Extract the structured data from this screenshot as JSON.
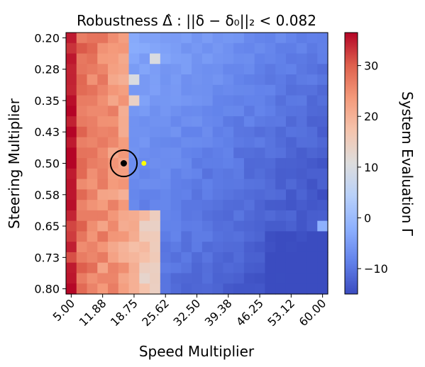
{
  "chart_data": {
    "type": "heatmap",
    "title": "Robustness Δ̂ : ||δ − δ₀||₂ < 0.082",
    "xlabel": "Speed Multiplier",
    "ylabel": "Steering Multiplier",
    "colorbar_label": "System Evaluation Γ",
    "colormap": "coolwarm",
    "x_ticks": [
      "5.00",
      "11.88",
      "18.75",
      "25.62",
      "32.50",
      "39.38",
      "46.25",
      "53.12",
      "60.00"
    ],
    "y_ticks": [
      "0.20",
      "0.28",
      "0.35",
      "0.43",
      "0.50",
      "0.58",
      "0.65",
      "0.73",
      "0.80"
    ],
    "colorbar_ticks": [
      "30",
      "20",
      "10",
      "0",
      "−10"
    ],
    "colorbar_tick_values": [
      30,
      20,
      10,
      0,
      -10
    ],
    "vmin": -15,
    "vmax": 36.5,
    "xlim": [
      5.0,
      60.0
    ],
    "ylim": [
      0.2,
      0.8
    ],
    "n_cols": 25,
    "n_rows": 25,
    "boundary_column": 6,
    "notable_cells": [
      {
        "row": 0,
        "col": 6,
        "value": -3
      },
      {
        "row": 2,
        "col": 8,
        "value": 10
      },
      {
        "row": 4,
        "col": 6,
        "value": 10
      },
      {
        "row": 6,
        "col": 6,
        "value": 14
      },
      {
        "row": 18,
        "col": 7,
        "value": 14
      },
      {
        "row": 18,
        "col": 8,
        "value": 14
      },
      {
        "row": 10,
        "col": 0,
        "value": 35
      },
      {
        "row": 11,
        "col": 0,
        "value": 36.5
      },
      {
        "row": 18,
        "col": 24,
        "value": -2
      }
    ],
    "marker_point": {
      "x": 16.5,
      "y": 0.5
    },
    "marker_circle_radius": 2.9,
    "highlight_point": {
      "x": 20.9,
      "y": 0.5,
      "color": "#ffff00"
    }
  }
}
